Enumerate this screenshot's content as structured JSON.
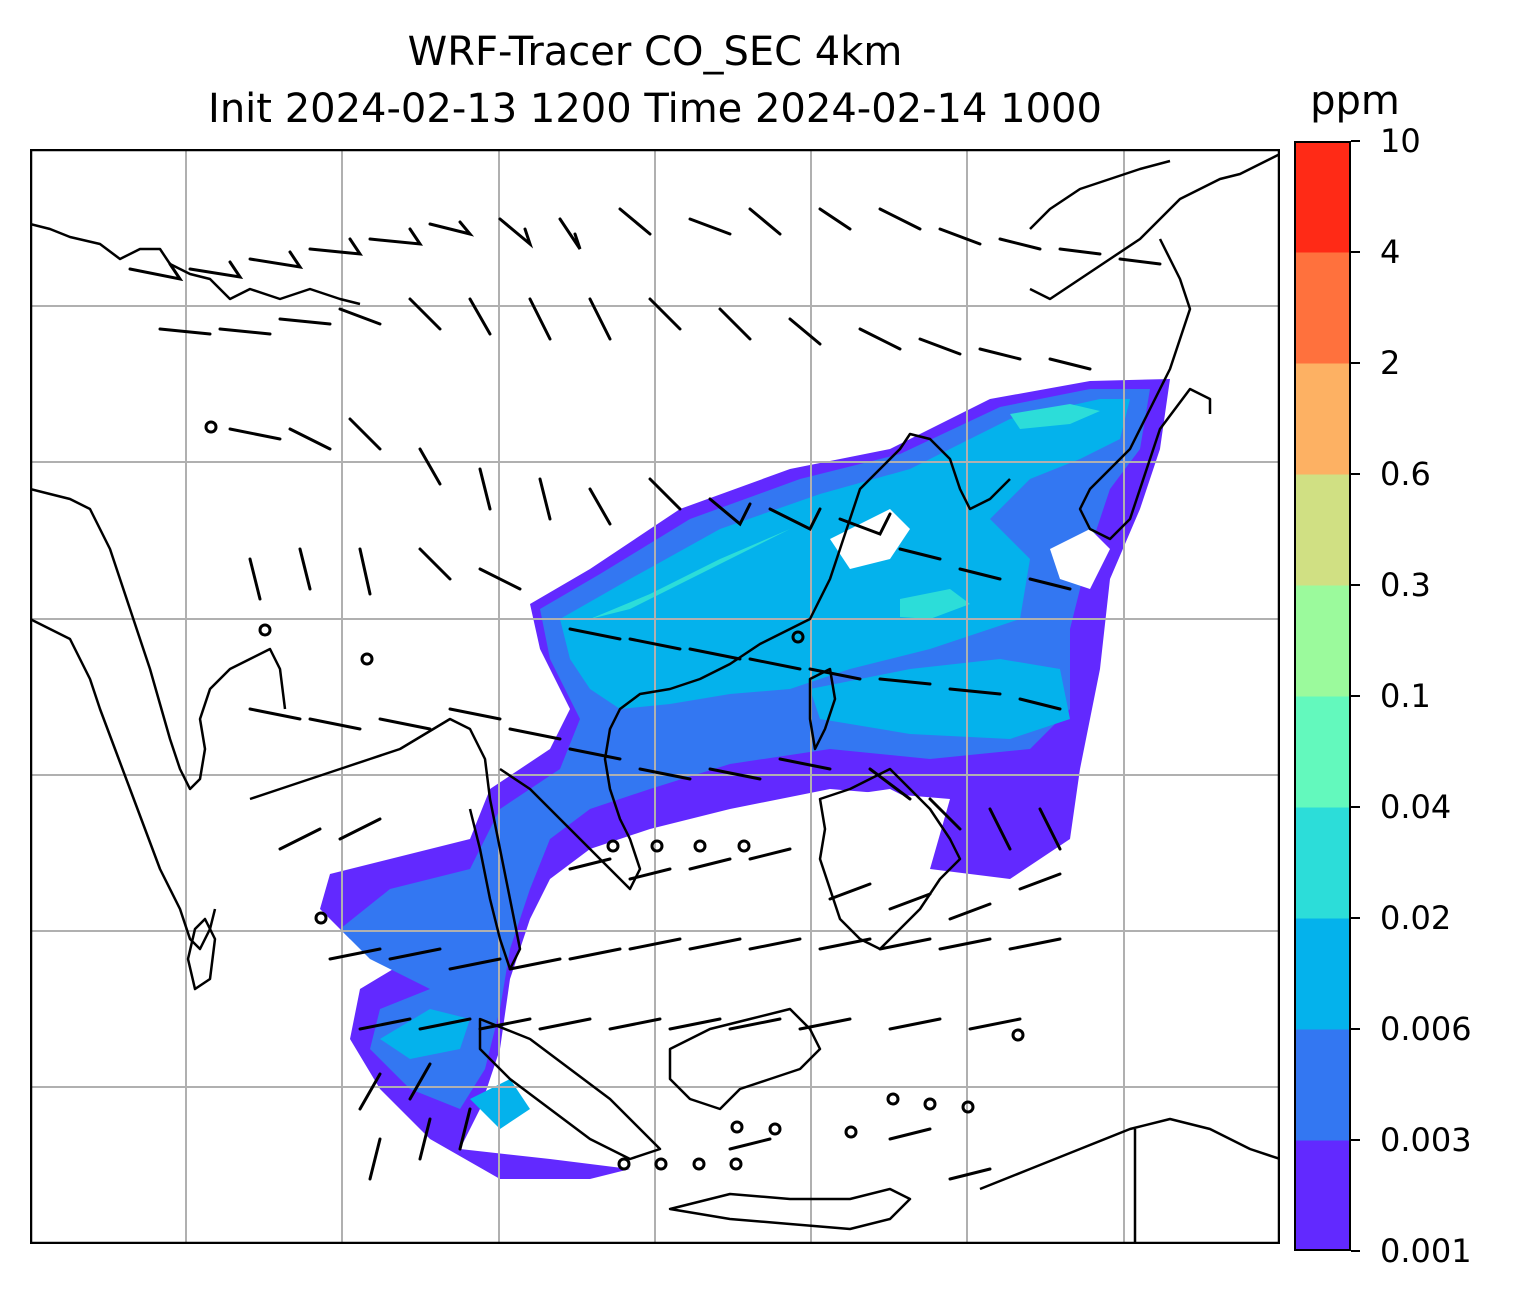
{
  "title": {
    "line1": "WRF-Tracer CO_SEC 4km",
    "line2": "Init 2024-02-13 1200 Time 2024-02-14 1000"
  },
  "colorbar": {
    "units": "ppm",
    "levels": [
      "0.001",
      "0.003",
      "0.006",
      "0.02",
      "0.04",
      "0.1",
      "0.3",
      "0.6",
      "2",
      "4",
      "10"
    ],
    "colors": [
      "#6229ff",
      "#3377f2",
      "#04b2ec",
      "#2cddd9",
      "#63f9bd",
      "#9bfa9c",
      "#d0e083",
      "#fdb163",
      "#ff713d",
      "#ff2a16"
    ]
  },
  "map": {
    "gridlines": true,
    "features": [
      "coastlines",
      "country borders",
      "wind barbs",
      "CO tracer concentration"
    ]
  }
}
